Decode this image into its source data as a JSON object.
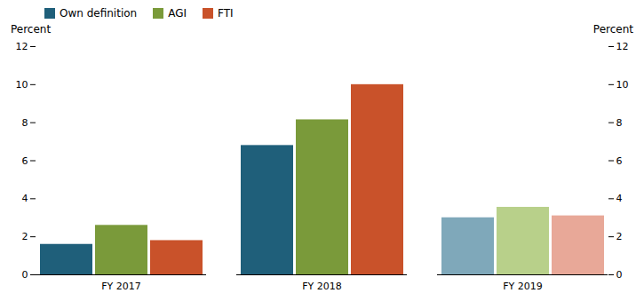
{
  "chart_data": {
    "type": "bar",
    "categories": [
      "FY 2017",
      "FY 2018",
      "FY 2019"
    ],
    "series": [
      {
        "name": "Own definition",
        "color": "#1f5f7a",
        "colors": [
          "#1f5f7a",
          "#1f5f7a",
          "#7fa8ba"
        ],
        "values": [
          1.6,
          6.8,
          3.0
        ]
      },
      {
        "name": "AGI",
        "color": "#7a9a3a",
        "colors": [
          "#7a9a3a",
          "#7a9a3a",
          "#b8d08a"
        ],
        "values": [
          2.6,
          8.15,
          3.55
        ]
      },
      {
        "name": "FTI",
        "color": "#c9522a",
        "colors": [
          "#c9522a",
          "#c9522a",
          "#e8a898"
        ],
        "values": [
          1.8,
          10.0,
          3.1
        ]
      }
    ],
    "ylabel": "Percent",
    "y2label": "Percent",
    "ylim": [
      0,
      12
    ],
    "yticks": [
      0,
      2,
      4,
      6,
      8,
      10,
      12
    ],
    "y2lim": [
      0,
      12
    ],
    "y2ticks": [
      0,
      2,
      4,
      6,
      8,
      10,
      12
    ],
    "grid": false,
    "legend": "upper left"
  }
}
